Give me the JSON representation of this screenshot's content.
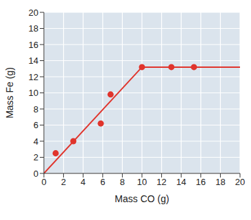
{
  "chart_data": {
    "type": "scatter",
    "xlabel": "Mass CO (g)",
    "ylabel": "Mass Fe (g)",
    "xlim": [
      0,
      20
    ],
    "xticks": [
      0,
      2,
      4,
      6,
      8,
      10,
      12,
      14,
      16,
      18,
      20
    ],
    "ylim": [
      0,
      20
    ],
    "yticks": [
      0,
      2,
      4,
      6,
      8,
      10,
      12,
      14,
      16,
      18,
      20
    ],
    "grid": true,
    "series": [
      {
        "type": "scatter",
        "marker": "circle",
        "color": "#e0342c",
        "x": [
          1.2,
          3,
          5.8,
          6.8,
          10,
          13,
          15.3
        ],
        "values": [
          2.5,
          4,
          6.2,
          9.8,
          13.2,
          13.2,
          13.2
        ]
      },
      {
        "type": "line",
        "line_style": "solid",
        "color": "#e0342c",
        "x": [
          0,
          10,
          20
        ],
        "values": [
          0,
          13.2,
          13.2
        ]
      }
    ]
  }
}
